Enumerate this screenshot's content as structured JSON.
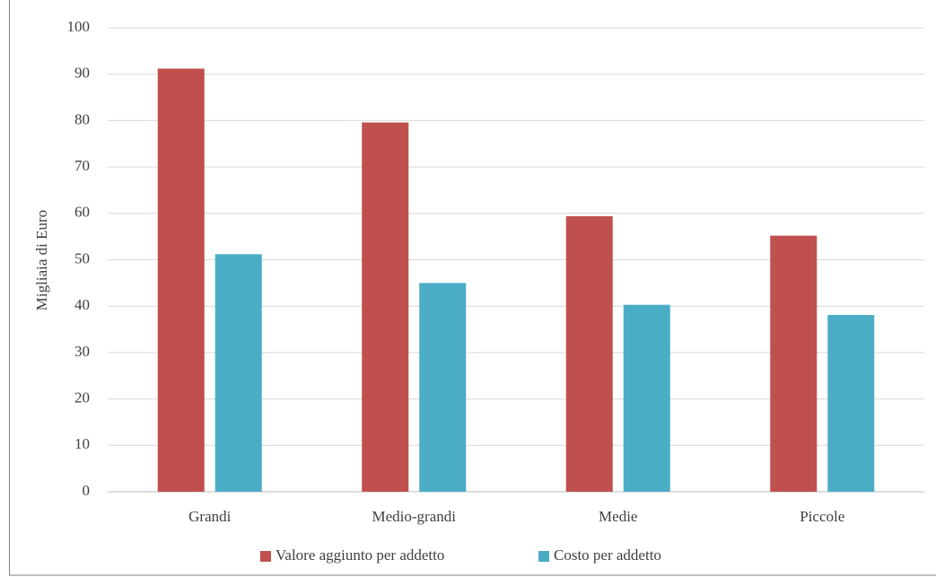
{
  "chart_data": {
    "type": "bar",
    "y_label": "Migliaia di Euro",
    "categories": [
      "Grandi",
      "Medio-grandi",
      "Medie",
      "Piccole"
    ],
    "series": [
      {
        "name": "Valore aggiunto per addetto",
        "color": "#c0504d",
        "values": [
          91.2,
          79.6,
          59.4,
          55.2
        ]
      },
      {
        "name": "Costo per addetto",
        "color": "#4bacc6",
        "values": [
          51.2,
          45,
          40.3,
          38.1
        ]
      }
    ],
    "ylim": [
      0,
      100
    ],
    "yticks": [
      0,
      10,
      20,
      30,
      40,
      50,
      60,
      70,
      80,
      90,
      100
    ],
    "grid": true,
    "legend": "bottom"
  }
}
